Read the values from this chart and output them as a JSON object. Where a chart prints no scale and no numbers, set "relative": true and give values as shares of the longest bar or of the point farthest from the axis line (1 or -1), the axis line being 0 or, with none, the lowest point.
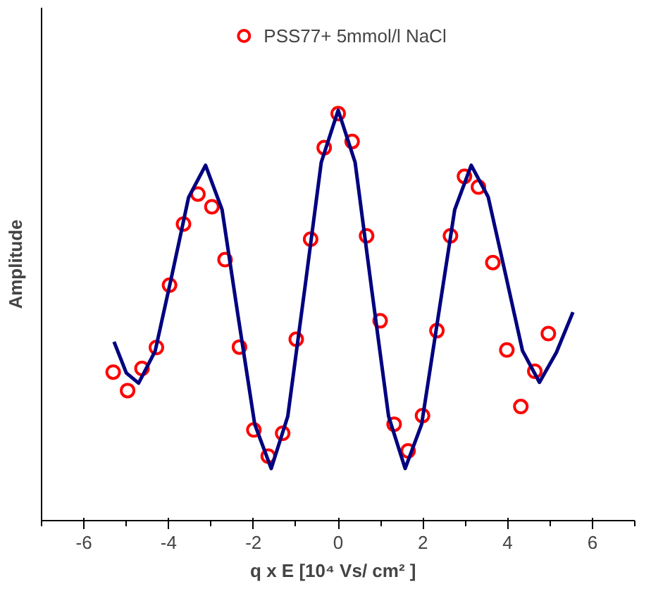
{
  "chart_data": {
    "type": "scatter",
    "xlabel": "q x E  [10⁴  Vs/ cm² ]",
    "ylabel": "Amplitude",
    "relative": true,
    "xlim": [
      -7,
      7
    ],
    "xticks": [
      {
        "value": -7,
        "label": null
      },
      -6,
      {
        "value": -5,
        "label": null
      },
      -4,
      {
        "value": -3,
        "label": null
      },
      -2,
      {
        "value": -1,
        "label": null
      },
      0,
      {
        "value": 1,
        "label": null
      },
      2,
      {
        "value": 3,
        "label": null
      },
      4,
      {
        "value": 5,
        "label": null
      },
      6,
      {
        "value": 7,
        "label": null
      }
    ],
    "grid": false,
    "legend": "top",
    "series": [
      {
        "name": "PSS77+ 5mmol/l NaCl",
        "marker": "circle",
        "color": "#ff0000",
        "x": [
          -5.31,
          -4.97,
          -4.63,
          -4.29,
          -3.98,
          -3.65,
          -3.31,
          -2.98,
          -2.67,
          -2.33,
          -1.99,
          -1.65,
          -1.31,
          -0.99,
          -0.65,
          -0.33,
          0,
          0.33,
          0.67,
          0.99,
          1.32,
          1.65,
          1.99,
          2.33,
          2.65,
          2.98,
          3.31,
          3.65,
          3.98,
          4.31,
          4.64,
          4.96
        ],
        "values": [
          0.362,
          0.317,
          0.371,
          0.422,
          0.574,
          0.723,
          0.796,
          0.765,
          0.636,
          0.423,
          0.221,
          0.157,
          0.213,
          0.442,
          0.686,
          0.909,
          0.992,
          0.924,
          0.694,
          0.487,
          0.235,
          0.17,
          0.256,
          0.463,
          0.694,
          0.839,
          0.813,
          0.629,
          0.416,
          0.278,
          0.364,
          0.456
        ]
      },
      {
        "type": "line",
        "marker": "none",
        "color": "#000080",
        "line_style": "solid",
        "x": [
          -5.29,
          -5.0,
          -4.71,
          -4.32,
          -3.92,
          -3.53,
          -3.13,
          -2.74,
          -2.36,
          -1.97,
          -1.58,
          -1.19,
          -0.79,
          -0.4,
          0,
          0.4,
          0.79,
          1.19,
          1.58,
          1.97,
          2.36,
          2.75,
          3.14,
          3.54,
          3.95,
          4.35,
          4.75,
          5.15,
          5.54
        ],
        "values": [
          0.436,
          0.36,
          0.335,
          0.413,
          0.6,
          0.788,
          0.866,
          0.758,
          0.497,
          0.235,
          0.127,
          0.254,
          0.564,
          0.873,
          1.0,
          0.873,
          0.564,
          0.254,
          0.127,
          0.235,
          0.497,
          0.758,
          0.866,
          0.789,
          0.6,
          0.414,
          0.337,
          0.41,
          0.508
        ]
      }
    ]
  }
}
